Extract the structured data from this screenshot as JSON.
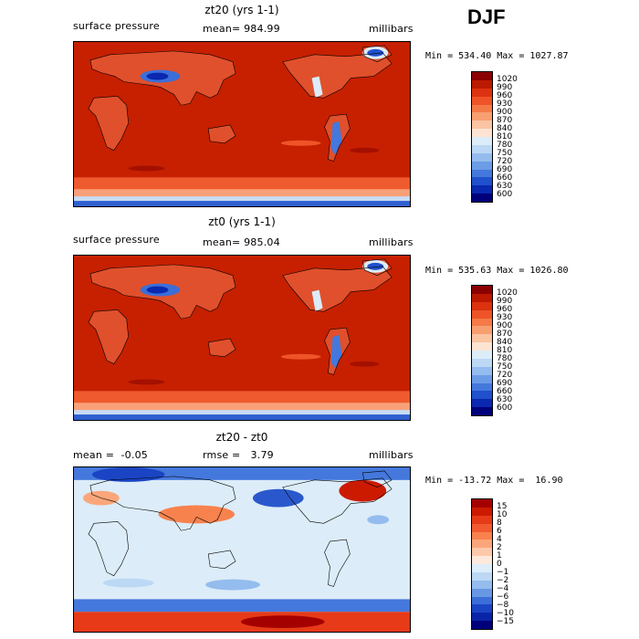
{
  "season": "DJF",
  "panels": [
    {
      "id": "zt20",
      "title": "zt20 (yrs 1-1)",
      "left_label": "surface pressure",
      "center_label": "mean= 984.99",
      "right_label": "millibars",
      "minmax": "Min = 534.40 Max = 1027.87",
      "kind": "pressure",
      "colorbar": {
        "labels": [
          "1020",
          "990",
          "960",
          "930",
          "900",
          "870",
          "840",
          "810",
          "780",
          "750",
          "720",
          "690",
          "660",
          "630",
          "600"
        ],
        "colors": [
          "#8b0000",
          "#bb1a00",
          "#dd3210",
          "#ee5428",
          "#f57a48",
          "#f89f70",
          "#fbc4a2",
          "#fde4d2",
          "#dcecf8",
          "#bcd8f4",
          "#94bcee",
          "#6c9ce6",
          "#4478dc",
          "#2050cc",
          "#0a28b0",
          "#00007a"
        ]
      }
    },
    {
      "id": "zt0",
      "title": "zt0 (yrs 1-1)",
      "left_label": "surface pressure",
      "center_label": "mean= 985.04",
      "right_label": "millibars",
      "minmax": "Min = 535.63 Max = 1026.80",
      "kind": "pressure",
      "colorbar": {
        "labels": [
          "1020",
          "990",
          "960",
          "930",
          "900",
          "870",
          "840",
          "810",
          "780",
          "750",
          "720",
          "690",
          "660",
          "630",
          "600"
        ],
        "colors": [
          "#8b0000",
          "#bb1a00",
          "#dd3210",
          "#ee5428",
          "#f57a48",
          "#f89f70",
          "#fbc4a2",
          "#fde4d2",
          "#dcecf8",
          "#bcd8f4",
          "#94bcee",
          "#6c9ce6",
          "#4478dc",
          "#2050cc",
          "#0a28b0",
          "#00007a"
        ]
      }
    },
    {
      "id": "diff",
      "title": "zt20 - zt0",
      "left_label": "mean =  -0.05",
      "center_label": "rmse =   3.79",
      "right_label": "millibars",
      "minmax": "Min = -13.72 Max =  16.90",
      "kind": "difference",
      "colorbar": {
        "labels": [
          "15",
          "10",
          "8",
          "6",
          "4",
          "2",
          "1",
          "0",
          "−1",
          "−2",
          "−4",
          "−6",
          "−8",
          "−10",
          "−15"
        ],
        "colors": [
          "#a50000",
          "#cc1a00",
          "#e63a18",
          "#f25a30",
          "#f8824e",
          "#fba67a",
          "#fdc9ab",
          "#fee8dc",
          "#ddeefa",
          "#bcd8f4",
          "#94bcee",
          "#6898e4",
          "#3c6ed8",
          "#1a44c4",
          "#0a24a8",
          "#00007a"
        ]
      }
    }
  ]
}
